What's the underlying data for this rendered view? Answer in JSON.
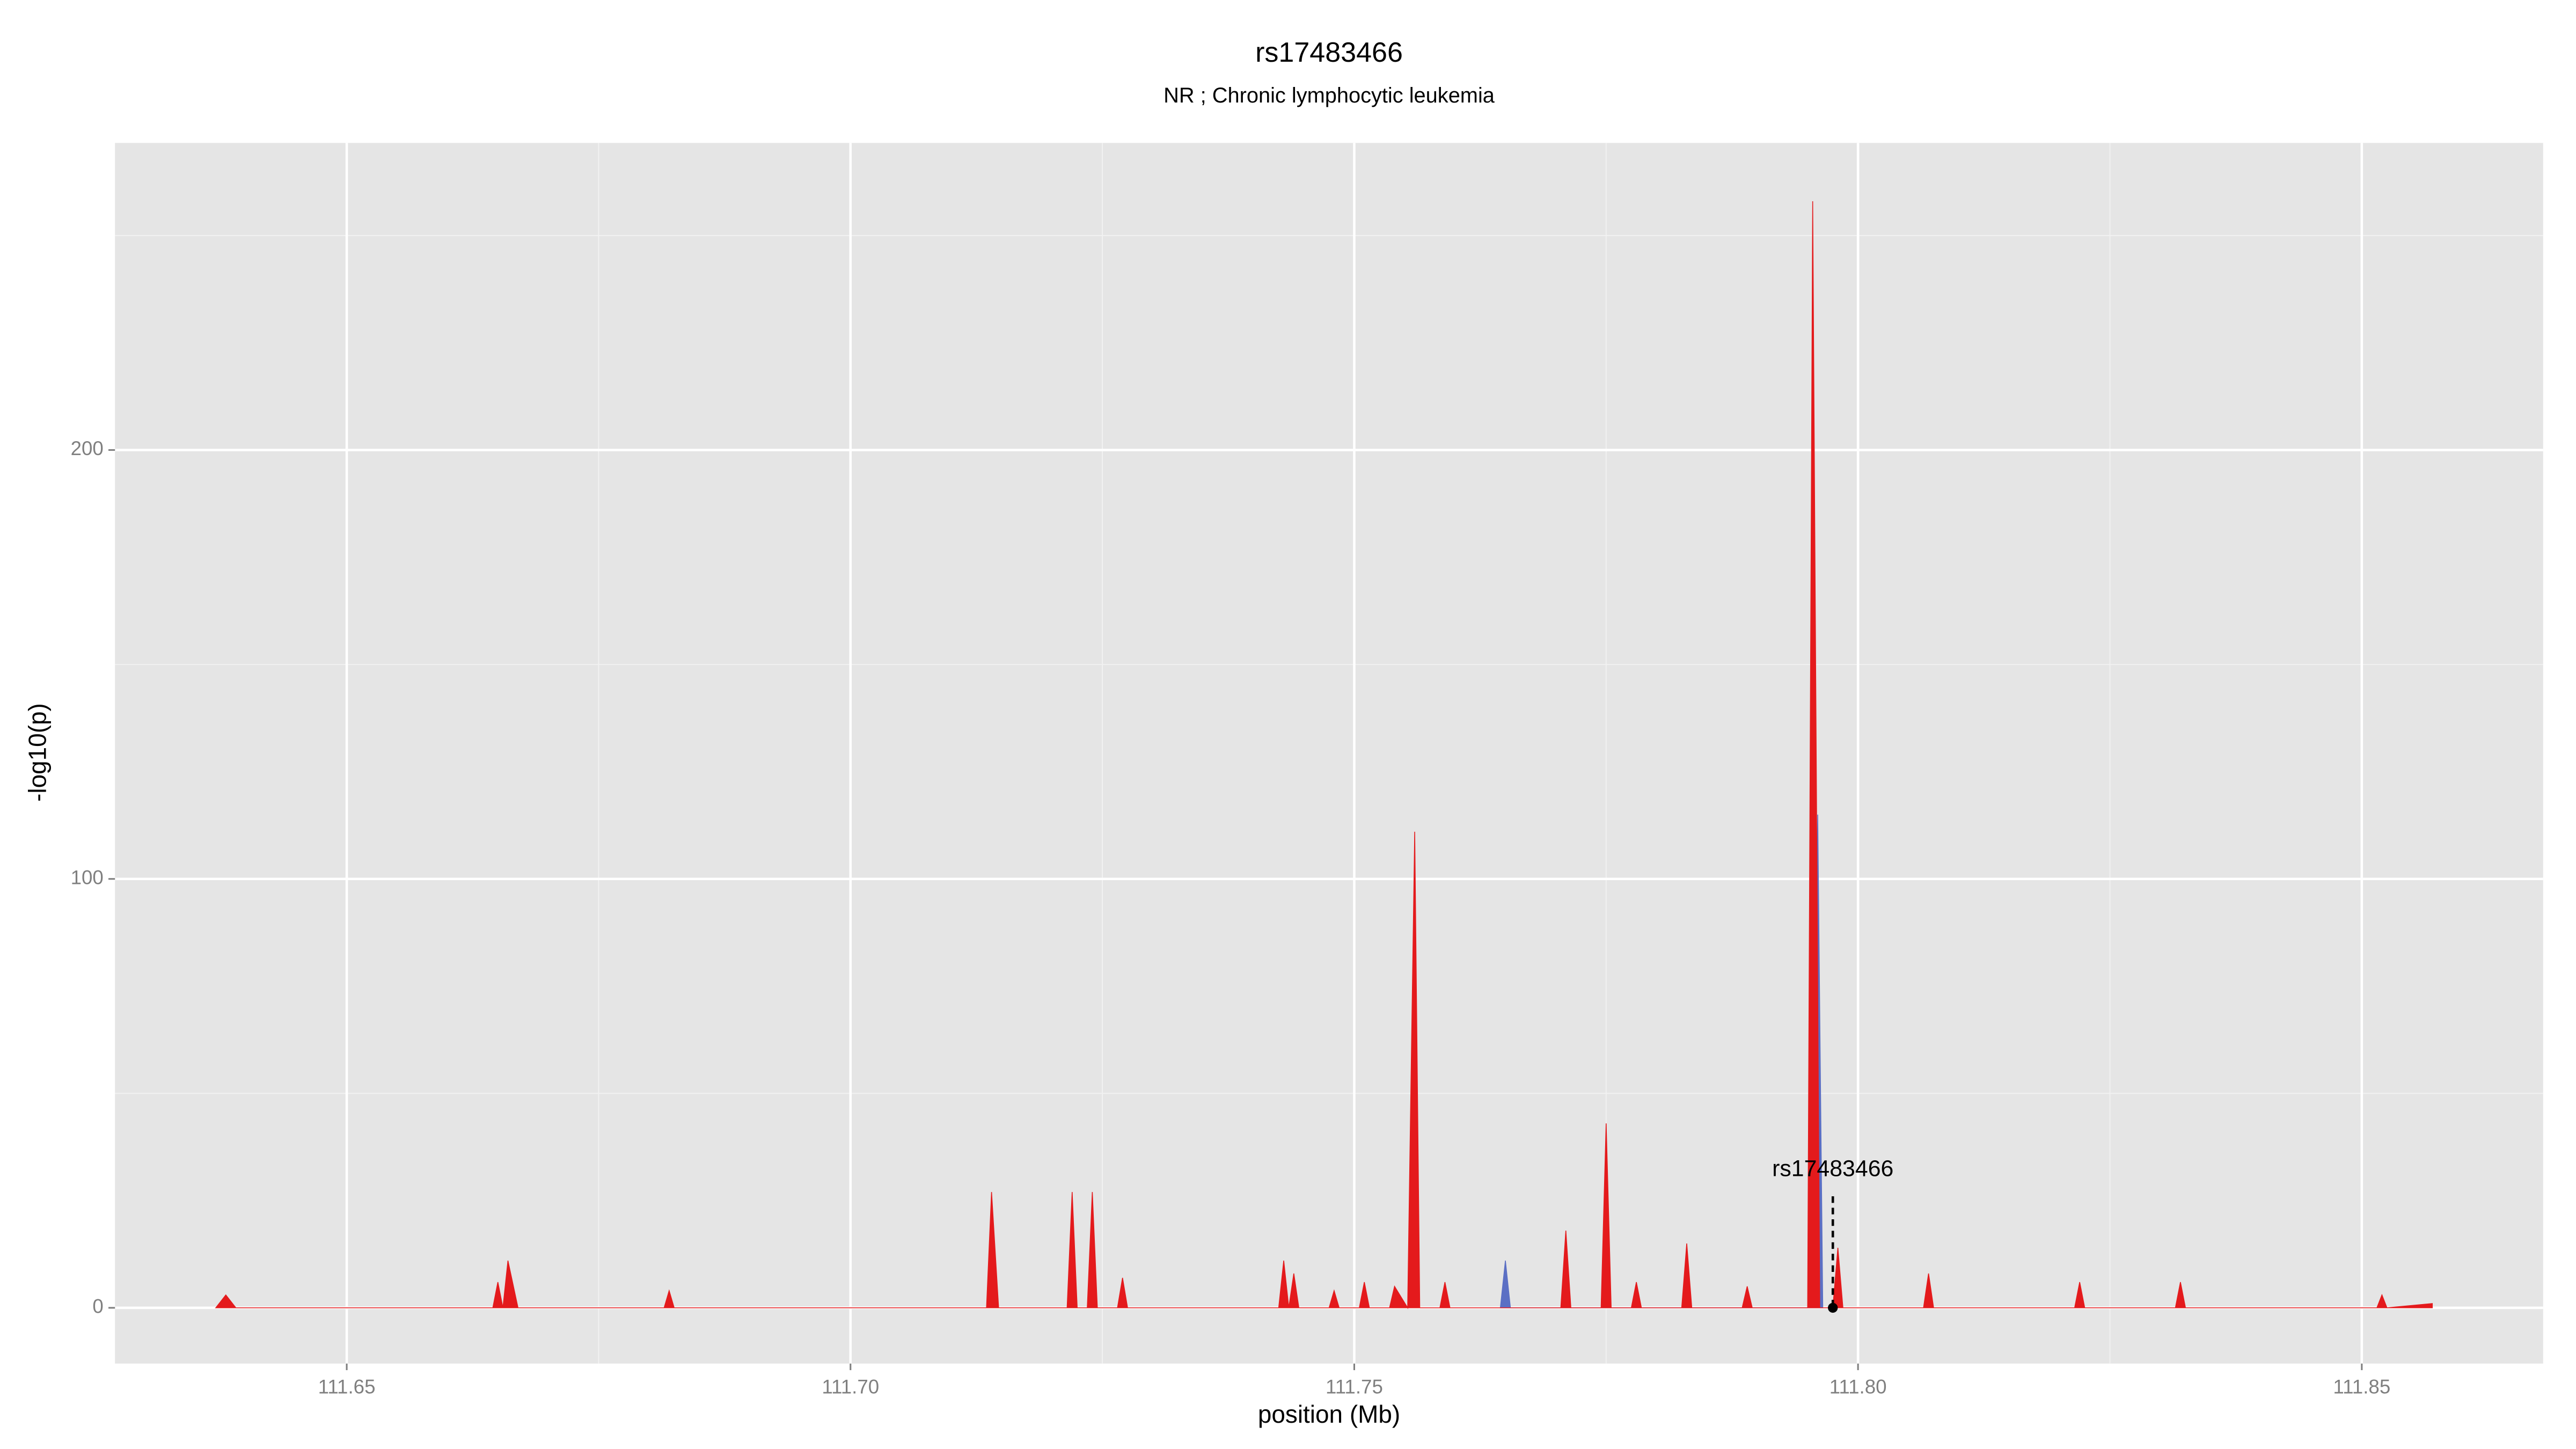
{
  "chart_data": {
    "type": "area",
    "title": "rs17483466",
    "subtitle": "NR ; Chronic lymphocytic leukemia",
    "xlabel": "position (Mb)",
    "ylabel": "-log10(p)",
    "xlim": [
      111.627,
      111.868
    ],
    "ylim": [
      -13,
      271.6
    ],
    "xticks": [
      111.65,
      {
        "value": 111.7,
        "label": "111.70"
      },
      111.75,
      {
        "value": 111.8,
        "label": "111.80"
      },
      111.85
    ],
    "yticks": [
      0,
      100,
      200
    ],
    "xminor": [
      111.675,
      111.725,
      111.775,
      111.825
    ],
    "yminor": [
      50,
      150,
      250
    ],
    "grid": true,
    "series": [
      {
        "color": "#5b6fc4",
        "x": [
          111.7645,
          111.765,
          111.7655,
          111.7955,
          111.796,
          111.7965
        ],
        "values": [
          0,
          11,
          0,
          0,
          115,
          0
        ]
      },
      {
        "color": "#e41a1c",
        "x": [
          111.637,
          111.638,
          111.639,
          111.6645,
          111.665,
          111.6655,
          111.666,
          111.667,
          111.6815,
          111.682,
          111.6825,
          111.7135,
          111.714,
          111.7147,
          111.7215,
          111.722,
          111.7225,
          111.7235,
          111.724,
          111.7245,
          111.7265,
          111.727,
          111.7275,
          111.7425,
          111.743,
          111.7435,
          111.744,
          111.7445,
          111.7475,
          111.748,
          111.7485,
          111.7505,
          111.751,
          111.7515,
          111.7535,
          111.754,
          111.7553,
          111.756,
          111.7565,
          111.7585,
          111.759,
          111.7595,
          111.7705,
          111.771,
          111.7715,
          111.7745,
          111.775,
          111.7755,
          111.7775,
          111.778,
          111.7785,
          111.7825,
          111.783,
          111.7835,
          111.7885,
          111.789,
          111.7895,
          111.795,
          111.7955,
          111.7962,
          111.7975,
          111.798,
          111.7985,
          111.8065,
          111.807,
          111.8075,
          111.8215,
          111.822,
          111.8225,
          111.8315,
          111.832,
          111.8325,
          111.8515,
          111.852,
          111.8525,
          111.857
        ],
        "values": [
          0,
          3,
          0,
          0,
          6,
          0,
          11,
          0,
          0,
          4,
          0,
          0,
          27,
          0,
          0,
          27,
          0,
          0,
          27,
          0,
          0,
          7,
          0,
          0,
          11,
          0,
          8,
          0,
          0,
          4,
          0,
          0,
          6,
          0,
          0,
          5,
          0,
          111,
          0,
          0,
          6,
          0,
          0,
          18,
          0,
          0,
          43,
          0,
          0,
          6,
          0,
          0,
          15,
          0,
          0,
          5,
          0,
          0,
          258,
          0,
          0,
          14,
          0,
          0,
          8,
          0,
          0,
          6,
          0,
          0,
          6,
          0,
          0,
          3,
          0,
          1
        ]
      }
    ],
    "annotation": {
      "label": "rs17483466",
      "x": 111.7975,
      "y": 0,
      "label_y": 26
    }
  }
}
